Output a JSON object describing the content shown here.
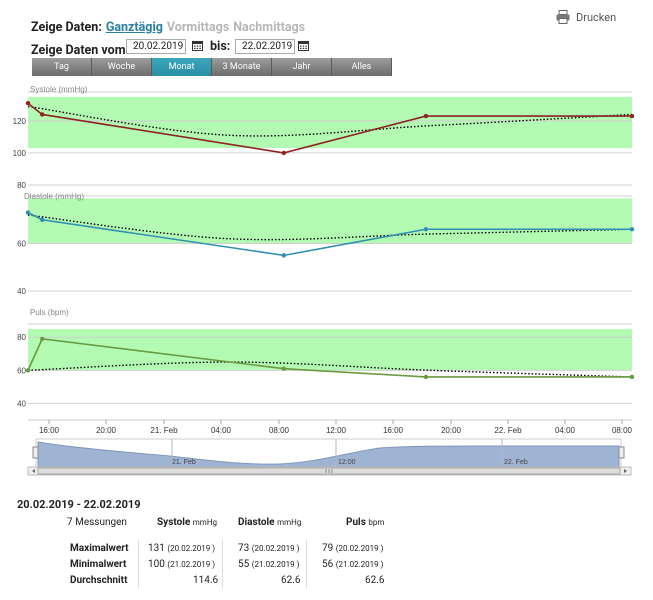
{
  "header": {
    "zeige_daten_label": "Zeige Daten:",
    "modes": [
      "Ganztägig",
      "Vormittags",
      "Nachmittags"
    ],
    "active_mode": "Ganztägig",
    "vom_label": "Zeige Daten vom:",
    "from_date": "20.02.2019",
    "bis_label": "bis:",
    "to_date": "22.02.2019",
    "print_label": "Drucken"
  },
  "range_buttons": [
    "Tag",
    "Woche",
    "Monat",
    "3 Monate",
    "Jahr",
    "Alles"
  ],
  "active_range": "Monat",
  "colors": {
    "band": "#b3fbb3",
    "systole": "#8e2222",
    "diastole": "#2f8fb2",
    "puls": "#6a9a40",
    "trend": "#000000",
    "active_button": "#2f9bb2",
    "navigator_fill": "#9fb3d2"
  },
  "chart_data": [
    {
      "type": "line",
      "title": "Systole (mmHg)",
      "yticks": [
        "120",
        "100",
        "80"
      ],
      "ylim": [
        80,
        138
      ],
      "normal_band": [
        103,
        135
      ],
      "x": [
        "2019-02-20 14:00",
        "2019-02-20 15:00",
        "2019-02-21 08:00",
        "2019-02-21 18:00",
        "2019-02-22 08:30"
      ],
      "series": [
        {
          "values": [
            131,
            124,
            100,
            123,
            123
          ]
        }
      ],
      "trend": [
        129,
        111,
        117,
        124
      ]
    },
    {
      "type": "line",
      "title": "Diastole (mmHg)",
      "yticks": [
        "60",
        "40"
      ],
      "ylim": [
        40,
        80
      ],
      "normal_band": [
        60,
        79
      ],
      "x": [
        "2019-02-20 14:00",
        "2019-02-20 15:00",
        "2019-02-21 08:00",
        "2019-02-21 18:00",
        "2019-02-22 08:30"
      ],
      "series": [
        {
          "values": [
            73,
            70,
            55,
            66,
            66
          ]
        }
      ],
      "trend": [
        72,
        62,
        64,
        66
      ]
    },
    {
      "type": "line",
      "title": "Puls (bpm)",
      "yticks": [
        "80",
        "60",
        "40"
      ],
      "ylim": [
        33,
        88
      ],
      "normal_band": [
        60,
        85
      ],
      "x": [
        "2019-02-20 14:00",
        "2019-02-20 15:00",
        "2019-02-21 08:00",
        "2019-02-21 18:00",
        "2019-02-22 08:30"
      ],
      "series": [
        {
          "values": [
            60,
            79,
            61,
            56,
            56
          ]
        }
      ],
      "trend": [
        60,
        65,
        60,
        56
      ]
    }
  ],
  "x_axis_ticks": [
    "16:00",
    "20:00",
    "21. Feb",
    "04:00",
    "08:00",
    "12:00",
    "16:00",
    "20:00",
    "22. Feb",
    "04:00",
    "08:00"
  ],
  "navigator_ticks": [
    "21. Feb",
    "12:00",
    "22. Feb"
  ],
  "summary": {
    "range": "20.02.2019 - 22.02.2019",
    "count": "7 Messungen",
    "col_systole": "Systole",
    "col_diastole": "Diastole",
    "col_puls": "Puls",
    "unit_mmhg": "mmHg",
    "unit_bpm": "bpm",
    "rows": [
      {
        "label": "Maximalwert",
        "sys": "131",
        "sys_date": "(20.02.2019 )",
        "dia": "73",
        "dia_date": "(20.02.2019 )",
        "pul": "79",
        "pul_date": "(20.02.2019 )"
      },
      {
        "label": "Minimalwert",
        "sys": "100",
        "sys_date": "(21.02.2019 )",
        "dia": "55",
        "dia_date": "(21.02.2019 )",
        "pul": "56",
        "pul_date": "(21.02.2019 )"
      },
      {
        "label": "Durchschnitt",
        "sys": "114.6",
        "sys_date": "",
        "dia": "62.6",
        "dia_date": "",
        "pul": "62.6",
        "pul_date": ""
      }
    ]
  }
}
